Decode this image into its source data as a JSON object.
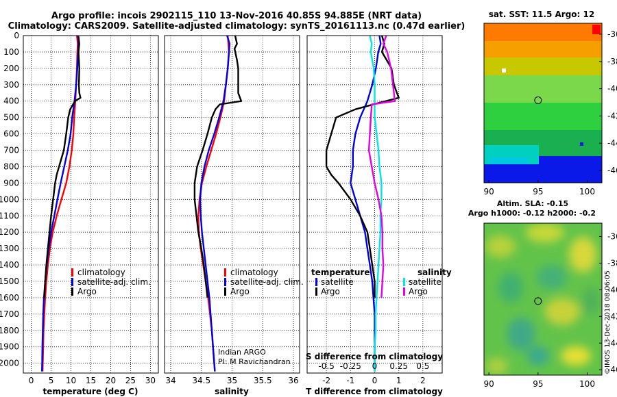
{
  "title": {
    "line1": "Argo profile: incois 2902115_110 13-Nov-2016 40.85S 94.885E (NRT data)",
    "line2": "Climatology: CARS2009. Satellite-adjusted climatology: synTS_20161113.nc (0.47d earlier)"
  },
  "colors": {
    "climatology": "#ff0000",
    "satellite": "#0000e6",
    "argo": "#000000",
    "sat_s": "#00e6e6",
    "argo_s": "#e600e6"
  },
  "chart_data": [
    {
      "type": "line",
      "id": "temperature",
      "xlabel": "temperature (deg C)",
      "ylabel": "",
      "xlim": [
        -2,
        32
      ],
      "ylim": [
        2060,
        0
      ],
      "xticks": [
        0,
        5,
        10,
        15,
        20,
        25,
        30
      ],
      "yticks": [
        0,
        100,
        200,
        300,
        400,
        500,
        600,
        700,
        800,
        900,
        1000,
        1100,
        1200,
        1300,
        1400,
        1500,
        1600,
        1700,
        1800,
        1900,
        2000
      ],
      "legend": [
        "climatology",
        "satellite-adj. clim.",
        "Argo"
      ],
      "series": [
        {
          "name": "climatology",
          "color_key": "climatology",
          "points": [
            [
              11.5,
              0
            ],
            [
              11.7,
              50
            ],
            [
              11.6,
              100
            ],
            [
              11.5,
              200
            ],
            [
              11.3,
              300
            ],
            [
              11.1,
              400
            ],
            [
              10.8,
              500
            ],
            [
              10.6,
              600
            ],
            [
              10.2,
              700
            ],
            [
              9.6,
              800
            ],
            [
              8.8,
              900
            ],
            [
              7.6,
              1000
            ],
            [
              6.4,
              1100
            ],
            [
              5.4,
              1200
            ],
            [
              4.7,
              1300
            ],
            [
              4.2,
              1400
            ],
            [
              3.8,
              1500
            ],
            [
              3.5,
              1600
            ],
            [
              3.3,
              1700
            ],
            [
              3.1,
              1800
            ],
            [
              3.0,
              1900
            ],
            [
              2.9,
              2000
            ],
            [
              2.85,
              2050
            ]
          ]
        },
        {
          "name": "satellite-adj. clim.",
          "color_key": "satellite",
          "points": [
            [
              11.8,
              0
            ],
            [
              11.9,
              50
            ],
            [
              11.8,
              100
            ],
            [
              11.6,
              200
            ],
            [
              11.3,
              300
            ],
            [
              10.9,
              400
            ],
            [
              10.3,
              500
            ],
            [
              9.9,
              600
            ],
            [
              9.2,
              700
            ],
            [
              8.3,
              800
            ],
            [
              7.4,
              900
            ],
            [
              6.6,
              1000
            ],
            [
              5.8,
              1100
            ],
            [
              5.0,
              1200
            ],
            [
              4.4,
              1300
            ],
            [
              3.9,
              1400
            ],
            [
              3.5,
              1500
            ],
            [
              3.2,
              1600
            ],
            [
              3.0,
              1700
            ],
            [
              2.9,
              1800
            ],
            [
              2.8,
              1900
            ],
            [
              2.75,
              2000
            ],
            [
              2.7,
              2050
            ]
          ]
        },
        {
          "name": "Argo",
          "color_key": "argo",
          "points": [
            [
              11.9,
              5
            ],
            [
              12.1,
              50
            ],
            [
              11.9,
              100
            ],
            [
              12.0,
              150
            ],
            [
              12.1,
              200
            ],
            [
              12.0,
              300
            ],
            [
              12.1,
              350
            ],
            [
              12.4,
              380
            ],
            [
              11.0,
              400
            ],
            [
              9.8,
              450
            ],
            [
              9.3,
              500
            ],
            [
              8.8,
              600
            ],
            [
              8.2,
              700
            ],
            [
              7.0,
              800
            ],
            [
              6.4,
              850
            ],
            [
              6.0,
              900
            ],
            [
              5.5,
              1000
            ],
            [
              5.0,
              1100
            ],
            [
              4.6,
              1200
            ],
            [
              4.2,
              1300
            ],
            [
              3.8,
              1400
            ],
            [
              3.5,
              1500
            ],
            [
              3.3,
              1600
            ]
          ]
        }
      ]
    },
    {
      "type": "line",
      "id": "salinity",
      "xlabel": "salinity",
      "xlim": [
        33.9,
        36.1
      ],
      "ylim": [
        2060,
        0
      ],
      "xticks": [
        34,
        34.5,
        35,
        35.5,
        36
      ],
      "xtick_labels": [
        "34",
        "34.5",
        "35",
        "35.5",
        "36"
      ],
      "legend": [
        "climatology",
        "satellite-adj. clim.",
        "Argo"
      ],
      "series": [
        {
          "name": "climatology",
          "color_key": "climatology",
          "points": [
            [
              34.93,
              0
            ],
            [
              34.95,
              100
            ],
            [
              34.93,
              200
            ],
            [
              34.9,
              300
            ],
            [
              34.87,
              400
            ],
            [
              34.81,
              500
            ],
            [
              34.74,
              600
            ],
            [
              34.66,
              700
            ],
            [
              34.58,
              800
            ],
            [
              34.51,
              900
            ],
            [
              34.47,
              1000
            ],
            [
              34.45,
              1100
            ],
            [
              34.46,
              1200
            ],
            [
              34.49,
              1300
            ],
            [
              34.53,
              1400
            ],
            [
              34.57,
              1500
            ],
            [
              34.61,
              1600
            ],
            [
              34.64,
              1700
            ],
            [
              34.67,
              1800
            ],
            [
              34.69,
              1900
            ],
            [
              34.71,
              2000
            ],
            [
              34.72,
              2050
            ]
          ]
        },
        {
          "name": "satellite-adj. clim.",
          "color_key": "satellite",
          "points": [
            [
              34.92,
              0
            ],
            [
              34.96,
              50
            ],
            [
              34.95,
              100
            ],
            [
              34.93,
              200
            ],
            [
              34.9,
              300
            ],
            [
              34.86,
              400
            ],
            [
              34.79,
              500
            ],
            [
              34.71,
              600
            ],
            [
              34.62,
              700
            ],
            [
              34.55,
              800
            ],
            [
              34.5,
              900
            ],
            [
              34.48,
              1000
            ],
            [
              34.49,
              1100
            ],
            [
              34.51,
              1200
            ],
            [
              34.54,
              1300
            ],
            [
              34.57,
              1400
            ],
            [
              34.6,
              1500
            ],
            [
              34.63,
              1600
            ],
            [
              34.65,
              1700
            ],
            [
              34.67,
              1800
            ],
            [
              34.69,
              1900
            ],
            [
              34.71,
              2000
            ],
            [
              34.72,
              2050
            ]
          ]
        },
        {
          "name": "Argo",
          "color_key": "argo",
          "points": [
            [
              35.05,
              0
            ],
            [
              35.08,
              50
            ],
            [
              35.04,
              80
            ],
            [
              35.08,
              150
            ],
            [
              35.1,
              200
            ],
            [
              35.1,
              300
            ],
            [
              35.1,
              350
            ],
            [
              35.15,
              400
            ],
            [
              34.8,
              420
            ],
            [
              34.73,
              450
            ],
            [
              34.67,
              500
            ],
            [
              34.6,
              600
            ],
            [
              34.52,
              700
            ],
            [
              34.43,
              800
            ],
            [
              34.39,
              900
            ],
            [
              34.39,
              1000
            ],
            [
              34.42,
              1100
            ],
            [
              34.45,
              1200
            ],
            [
              34.5,
              1300
            ],
            [
              34.54,
              1400
            ],
            [
              34.57,
              1500
            ],
            [
              34.6,
              1600
            ]
          ]
        }
      ]
    },
    {
      "type": "line",
      "id": "difference",
      "xlabel": "T difference from climatology",
      "xlabel_top": "S difference from climatology",
      "xlim": [
        -2.8,
        2.8
      ],
      "ylim": [
        2060,
        0
      ],
      "xticks": [
        -2,
        -1,
        0,
        1,
        2
      ],
      "xticks_top": [
        "-0.5",
        "-0.25",
        "0",
        "0.25",
        "0.5"
      ],
      "legend_temperature_title": "temperature",
      "legend_salinity_title": "salinity",
      "legend": [
        "satellite",
        "Argo"
      ],
      "series": [
        {
          "name": "temperature satellite",
          "color_key": "satellite",
          "points": [
            [
              0.2,
              0
            ],
            [
              0.25,
              50
            ],
            [
              0.15,
              100
            ],
            [
              0.05,
              200
            ],
            [
              -0.1,
              300
            ],
            [
              -0.3,
              400
            ],
            [
              -0.6,
              500
            ],
            [
              -0.8,
              600
            ],
            [
              -0.9,
              700
            ],
            [
              -0.9,
              800
            ],
            [
              -1.0,
              900
            ],
            [
              -0.8,
              1000
            ],
            [
              -0.6,
              1100
            ],
            [
              -0.4,
              1200
            ],
            [
              -0.3,
              1300
            ],
            [
              -0.2,
              1400
            ],
            [
              -0.1,
              1500
            ],
            [
              -0.05,
              1600
            ],
            [
              0,
              1700
            ],
            [
              0,
              1800
            ],
            [
              0,
              1900
            ],
            [
              0,
              2000
            ],
            [
              0,
              2050
            ]
          ]
        },
        {
          "name": "temperature Argo",
          "color_key": "argo",
          "points": [
            [
              0.3,
              0
            ],
            [
              0.4,
              50
            ],
            [
              0.3,
              100
            ],
            [
              0.5,
              150
            ],
            [
              0.7,
              200
            ],
            [
              0.8,
              300
            ],
            [
              1.0,
              380
            ],
            [
              0.2,
              410
            ],
            [
              -0.8,
              450
            ],
            [
              -1.6,
              500
            ],
            [
              -1.8,
              600
            ],
            [
              -2.0,
              700
            ],
            [
              -2.0,
              800
            ],
            [
              -1.8,
              850
            ],
            [
              -1.5,
              900
            ],
            [
              -1.0,
              1000
            ],
            [
              -0.6,
              1100
            ],
            [
              -0.3,
              1200
            ],
            [
              -0.2,
              1300
            ],
            [
              -0.1,
              1400
            ],
            [
              0,
              1500
            ],
            [
              0,
              1600
            ]
          ]
        },
        {
          "name": "salinity satellite",
          "color_key": "sat_s",
          "points": [
            [
              -0.05,
              0
            ],
            [
              -0.03,
              50
            ],
            [
              -0.04,
              100
            ],
            [
              -0.01,
              200
            ],
            [
              0.0,
              300
            ],
            [
              0.0,
              400
            ],
            [
              0.0,
              500
            ],
            [
              0.02,
              600
            ],
            [
              0.04,
              700
            ],
            [
              0.05,
              800
            ],
            [
              0.07,
              900
            ],
            [
              0.07,
              1000
            ],
            [
              0.06,
              1100
            ],
            [
              0.06,
              1200
            ],
            [
              0.05,
              1300
            ],
            [
              0.04,
              1400
            ],
            [
              0.03,
              1500
            ],
            [
              0.02,
              1600
            ],
            [
              0.01,
              1700
            ],
            [
              0.01,
              1800
            ],
            [
              0.0,
              1900
            ],
            [
              0.0,
              2000
            ],
            [
              0.0,
              2050
            ]
          ]
        },
        {
          "name": "salinity Argo",
          "color_key": "argo_s",
          "points": [
            [
              0.12,
              0
            ],
            [
              0.09,
              50
            ],
            [
              0.13,
              100
            ],
            [
              0.17,
              200
            ],
            [
              0.19,
              300
            ],
            [
              0.21,
              400
            ],
            [
              -0.03,
              420
            ],
            [
              -0.04,
              500
            ],
            [
              -0.05,
              600
            ],
            [
              -0.06,
              700
            ],
            [
              -0.03,
              800
            ],
            [
              0.0,
              900
            ],
            [
              0.04,
              1000
            ],
            [
              0.07,
              1100
            ],
            [
              0.08,
              1200
            ],
            [
              0.08,
              1300
            ],
            [
              0.09,
              1400
            ],
            [
              0.08,
              1500
            ],
            [
              0.07,
              1600
            ]
          ]
        }
      ]
    }
  ],
  "credits": {
    "line1": "Indian ARGO",
    "line2": "PI: M Ravichandran"
  },
  "maps": {
    "sst": {
      "title": "sat. SST: 11.5 Argo: 12",
      "xticks": [
        "90",
        "95",
        "100"
      ],
      "yticks": [
        "-36",
        "-38",
        "-40",
        "-42",
        "-44",
        "-46"
      ],
      "marker": {
        "lon": 95,
        "lat": -40.85
      }
    },
    "sla": {
      "title1": "Altim. SLA: -0.15",
      "title2": "Argo h1000: -0.12 h2000: -0.2",
      "xticks": [
        "90",
        "95",
        "100"
      ],
      "yticks": [
        "-36",
        "-38",
        "-40",
        "-42",
        "-44",
        "-46"
      ],
      "marker": {
        "lon": 95,
        "lat": -40.85
      }
    }
  },
  "watermark": "©IMOS 13-Dec-2018 08:06:05"
}
